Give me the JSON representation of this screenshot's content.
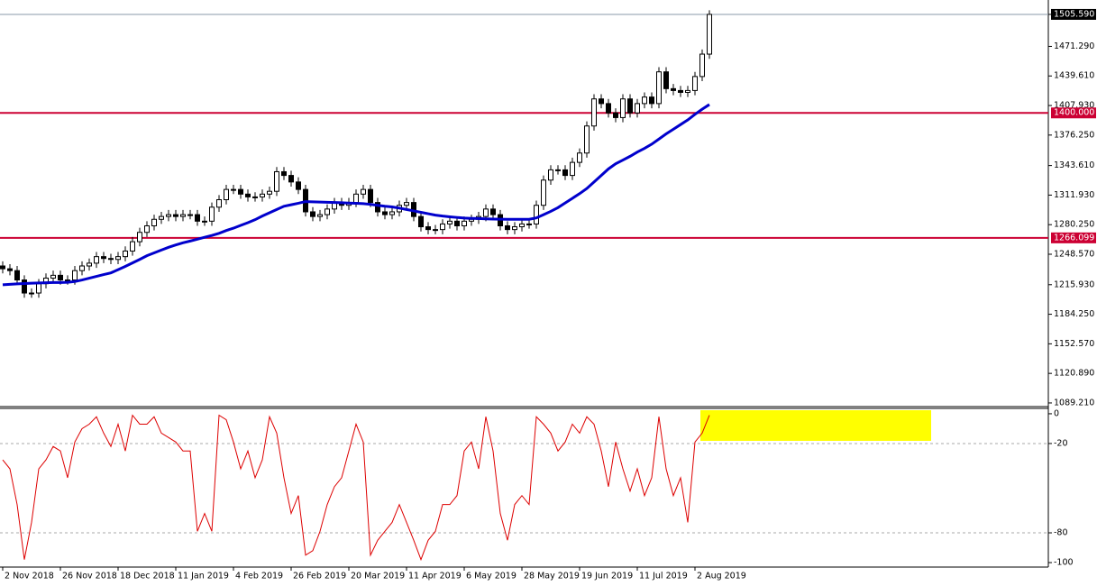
{
  "chart_data": [
    {
      "type": "candlestick",
      "categories": [
        "2 Nov 2018",
        null,
        null,
        null,
        null,
        null,
        null,
        null,
        "26 Nov 2018",
        null,
        null,
        null,
        null,
        null,
        null,
        null,
        "18 Dec 2018",
        null,
        null,
        null,
        null,
        null,
        null,
        null,
        "11 Jan 2019",
        null,
        null,
        null,
        null,
        null,
        null,
        null,
        "4 Feb 2019",
        null,
        null,
        null,
        null,
        null,
        null,
        null,
        "26 Feb 2019",
        null,
        null,
        null,
        null,
        null,
        null,
        null,
        "20 Mar 2019",
        null,
        null,
        null,
        null,
        null,
        null,
        null,
        "11 Apr 2019",
        null,
        null,
        null,
        null,
        null,
        null,
        null,
        "6 May 2019",
        null,
        null,
        null,
        null,
        null,
        null,
        null,
        "28 May 2019",
        null,
        null,
        null,
        null,
        null,
        null,
        null,
        "19 Jun 2019",
        null,
        null,
        null,
        null,
        null,
        null,
        null,
        "11 Jul 2019",
        null,
        null,
        null,
        null,
        null,
        null,
        null,
        "2 Aug 2019",
        null,
        null
      ],
      "open": [
        1236,
        1233,
        1231,
        1221,
        1207,
        1207,
        1217,
        1223,
        1226,
        1221,
        1221,
        1231,
        1236,
        1239,
        1246,
        1244,
        1243,
        1246,
        1252,
        1262,
        1272,
        1279,
        1286,
        1289,
        1291,
        1289,
        1291,
        1291,
        1284,
        1284,
        1299,
        1307,
        1318,
        1318,
        1313,
        1310,
        1310,
        1313,
        1316,
        1337,
        1333,
        1326,
        1318,
        1294,
        1289,
        1291,
        1297,
        1304,
        1301,
        1304,
        1313,
        1318,
        1304,
        1294,
        1291,
        1294,
        1301,
        1304,
        1289,
        1278,
        1275,
        1275,
        1281,
        1284,
        1279,
        1284,
        1286,
        1289,
        1297,
        1291,
        1279,
        1275,
        1278,
        1281,
        1281,
        1301,
        1328,
        1339,
        1339,
        1333,
        1347,
        1357,
        1386,
        1415,
        1410,
        1400,
        1395,
        1415,
        1400,
        1410,
        1417,
        1410,
        1444,
        1426,
        1424,
        1422,
        1424,
        1439,
        1463
      ],
      "high": [
        1241,
        1238,
        1236,
        1226,
        1212,
        1222,
        1228,
        1231,
        1231,
        1226,
        1236,
        1241,
        1244,
        1251,
        1251,
        1249,
        1251,
        1257,
        1267,
        1277,
        1284,
        1291,
        1294,
        1296,
        1296,
        1296,
        1296,
        1296,
        1289,
        1304,
        1312,
        1323,
        1323,
        1323,
        1318,
        1315,
        1318,
        1321,
        1342,
        1342,
        1338,
        1331,
        1323,
        1299,
        1296,
        1302,
        1309,
        1309,
        1309,
        1318,
        1323,
        1323,
        1309,
        1299,
        1299,
        1306,
        1309,
        1309,
        1294,
        1283,
        1280,
        1286,
        1289,
        1289,
        1289,
        1291,
        1294,
        1302,
        1302,
        1296,
        1284,
        1283,
        1286,
        1286,
        1306,
        1333,
        1344,
        1344,
        1344,
        1352,
        1362,
        1391,
        1420,
        1420,
        1415,
        1405,
        1420,
        1420,
        1415,
        1422,
        1422,
        1449,
        1449,
        1431,
        1429,
        1429,
        1444,
        1468,
        1510
      ],
      "low": [
        1228,
        1226,
        1216,
        1202,
        1202,
        1202,
        1212,
        1218,
        1216,
        1216,
        1216,
        1226,
        1231,
        1234,
        1239,
        1238,
        1238,
        1241,
        1247,
        1257,
        1267,
        1274,
        1281,
        1284,
        1284,
        1284,
        1286,
        1279,
        1279,
        1279,
        1294,
        1302,
        1313,
        1308,
        1305,
        1305,
        1305,
        1308,
        1311,
        1328,
        1321,
        1313,
        1289,
        1284,
        1284,
        1286,
        1292,
        1296,
        1296,
        1299,
        1308,
        1299,
        1289,
        1286,
        1286,
        1289,
        1296,
        1284,
        1273,
        1270,
        1270,
        1270,
        1276,
        1274,
        1274,
        1279,
        1281,
        1284,
        1286,
        1274,
        1270,
        1270,
        1273,
        1276,
        1276,
        1296,
        1323,
        1334,
        1328,
        1328,
        1342,
        1352,
        1381,
        1405,
        1395,
        1390,
        1390,
        1395,
        1395,
        1405,
        1405,
        1405,
        1421,
        1419,
        1417,
        1417,
        1419,
        1434,
        1458
      ],
      "close": [
        1233,
        1231,
        1221,
        1207,
        1207,
        1217,
        1223,
        1226,
        1221,
        1221,
        1231,
        1236,
        1239,
        1246,
        1244,
        1243,
        1246,
        1252,
        1262,
        1272,
        1279,
        1286,
        1289,
        1291,
        1289,
        1291,
        1291,
        1284,
        1284,
        1299,
        1307,
        1318,
        1318,
        1313,
        1310,
        1310,
        1313,
        1316,
        1337,
        1333,
        1326,
        1318,
        1294,
        1289,
        1291,
        1297,
        1304,
        1301,
        1304,
        1313,
        1318,
        1304,
        1294,
        1291,
        1294,
        1301,
        1304,
        1289,
        1278,
        1275,
        1275,
        1281,
        1284,
        1279,
        1284,
        1286,
        1289,
        1297,
        1291,
        1279,
        1275,
        1278,
        1281,
        1281,
        1301,
        1328,
        1339,
        1339,
        1333,
        1347,
        1357,
        1386,
        1415,
        1410,
        1400,
        1395,
        1415,
        1400,
        1410,
        1417,
        1410,
        1444,
        1426,
        1424,
        1422,
        1424,
        1439,
        1463,
        1505.59
      ],
      "series": [
        {
          "color": "#0000cc",
          "values": [
            1215.8,
            1216.3,
            1216.8,
            1217.2,
            1217.5,
            1217.8,
            1218,
            1218.2,
            1218.3,
            1218.5,
            1219.3,
            1221,
            1222.9,
            1224.8,
            1226.8,
            1228.6,
            1232,
            1235.5,
            1239.3,
            1243,
            1247,
            1250,
            1253,
            1256,
            1258.5,
            1260.8,
            1262.7,
            1264.7,
            1266.7,
            1268.7,
            1271,
            1274,
            1276.5,
            1279.5,
            1282.4,
            1285.6,
            1289.5,
            1293,
            1296.5,
            1300,
            1301.6,
            1303.2,
            1305,
            1304.7,
            1304.5,
            1304.2,
            1304,
            1303.7,
            1303.4,
            1303.1,
            1302.8,
            1302,
            1301,
            1300,
            1299.3,
            1298,
            1296.5,
            1295,
            1293.5,
            1292,
            1290.5,
            1289.5,
            1288.7,
            1288,
            1287.3,
            1287,
            1286.8,
            1286.5,
            1286.3,
            1286.1,
            1286,
            1286,
            1286,
            1286,
            1287.5,
            1291,
            1294.5,
            1298.5,
            1303.5,
            1308.5,
            1313.5,
            1319,
            1326,
            1333,
            1340,
            1345.5,
            1349.5,
            1353.5,
            1358,
            1362,
            1366.5,
            1372,
            1377.5,
            1382.5,
            1387.5,
            1392.5,
            1398.5,
            1404,
            1409
          ]
        }
      ],
      "hlines": [
        {
          "value": 1400,
          "label": "1400.000",
          "color": "#cc0033"
        },
        {
          "value": 1266.099,
          "label": "1266.099",
          "color": "#cc0033"
        }
      ],
      "ylim": [
        1085.3,
        1521.0
      ],
      "yticks": [
        {
          "value": 1505.59,
          "label": "1505.590"
        },
        {
          "value": 1471.29,
          "label": "1471.290"
        },
        {
          "value": 1439.61,
          "label": "1439.610"
        },
        {
          "value": 1407.93,
          "label": "1407.930"
        },
        {
          "value": 1376.25,
          "label": "1376.250"
        },
        {
          "value": 1343.61,
          "label": "1343.610"
        },
        {
          "value": 1311.93,
          "label": "1311.930"
        },
        {
          "value": 1280.25,
          "label": "1280.250"
        },
        {
          "value": 1248.57,
          "label": "1248.570"
        },
        {
          "value": 1215.93,
          "label": "1215.930"
        },
        {
          "value": 1184.25,
          "label": "1184.250"
        },
        {
          "value": 1152.57,
          "label": "1152.570"
        },
        {
          "value": 1120.89,
          "label": "1120.890"
        },
        {
          "value": 1089.21,
          "label": "1089.210"
        }
      ]
    },
    {
      "type": "line",
      "series": [
        {
          "color": "#dd0000",
          "values": [
            -31,
            -37,
            -61,
            -98,
            -73,
            -37,
            -31,
            -22,
            -25,
            -43,
            -19,
            -10,
            -7,
            -2,
            -13,
            -22,
            -7,
            -25,
            -1,
            -7,
            -7,
            -2,
            -13,
            -16,
            -19,
            -25,
            -25,
            -79,
            -67,
            -79,
            -1,
            -4,
            -19,
            -37,
            -25,
            -43,
            -31,
            -2,
            -13,
            -43,
            -67,
            -55,
            -95,
            -92,
            -79,
            -61,
            -49,
            -43,
            -25,
            -7,
            -19,
            -95,
            -85,
            -79,
            -73,
            -61,
            -73,
            -85,
            -98,
            -85,
            -79,
            -61,
            -61,
            -55,
            -25,
            -19,
            -37,
            -2,
            -25,
            -67,
            -85,
            -61,
            -55,
            -61,
            -2,
            -7,
            -13,
            -25,
            -19,
            -7,
            -13,
            -2,
            -7,
            -25,
            -49,
            -19,
            -37,
            -52,
            -37,
            -55,
            -43,
            -2,
            -37,
            -55,
            -43,
            -73,
            -19,
            -13,
            -1
          ]
        }
      ],
      "levels": [
        -20,
        -80
      ],
      "ylim": [
        -102.4,
        3.6
      ],
      "yticks": [
        0,
        -20,
        -80,
        -100
      ]
    }
  ]
}
